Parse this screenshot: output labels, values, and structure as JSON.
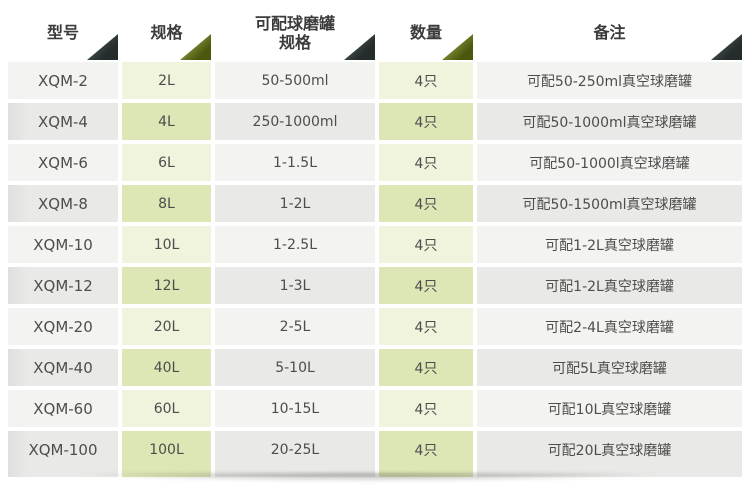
{
  "theme": {
    "accent_dark": "#242c2c",
    "accent_olive": "#4a570c",
    "row_grey_light": "#f3f3f1",
    "row_grey_dark": "#e9e9e7",
    "cell_green_light": "#f0f4dc",
    "cell_green_dark": "#dde7b5",
    "header_text": "#3b3b3b",
    "body_text": "#4d4d4d"
  },
  "table": {
    "columns": [
      {
        "label": "型号",
        "accent": "dark"
      },
      {
        "label": "规格",
        "accent": "olive"
      },
      {
        "label": "可配球磨罐\n规格",
        "accent": "dark"
      },
      {
        "label": "数量",
        "accent": "olive"
      },
      {
        "label": "备注",
        "accent": "dark"
      }
    ],
    "rows": [
      {
        "model": "XQM-2",
        "spec": "2L",
        "jar": "50-500ml",
        "qty": "4只",
        "note": "可配50-250ml真空球磨罐"
      },
      {
        "model": "XQM-4",
        "spec": "4L",
        "jar": "250-1000ml",
        "qty": "4只",
        "note": "可配50-1000ml真空球磨罐"
      },
      {
        "model": "XQM-6",
        "spec": "6L",
        "jar": "1-1.5L",
        "qty": "4只",
        "note": "可配50-1000l真空球磨罐"
      },
      {
        "model": "XQM-8",
        "spec": "8L",
        "jar": "1-2L",
        "qty": "4只",
        "note": "可配50-1500ml真空球磨罐"
      },
      {
        "model": "XQM-10",
        "spec": "10L",
        "jar": "1-2.5L",
        "qty": "4只",
        "note": "可配1-2L真空球磨罐"
      },
      {
        "model": "XQM-12",
        "spec": "12L",
        "jar": "1-3L",
        "qty": "4只",
        "note": "可配1-2L真空球磨罐"
      },
      {
        "model": "XQM-20",
        "spec": "20L",
        "jar": "2-5L",
        "qty": "4只",
        "note": "可配2-4L真空球磨罐"
      },
      {
        "model": "XQM-40",
        "spec": "40L",
        "jar": "5-10L",
        "qty": "4只",
        "note": "可配5L真空球磨罐"
      },
      {
        "model": "XQM-60",
        "spec": "60L",
        "jar": "10-15L",
        "qty": "4只",
        "note": "可配10L真空球磨罐"
      },
      {
        "model": "XQM-100",
        "spec": "100L",
        "jar": "20-25L",
        "qty": "4只",
        "note": "可配20L真空球磨罐"
      }
    ]
  }
}
